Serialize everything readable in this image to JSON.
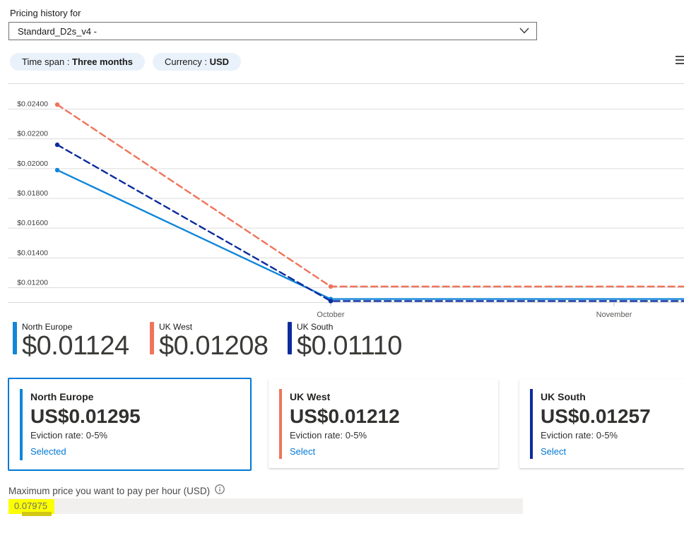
{
  "header": {
    "label": "Pricing history for",
    "dropdown_value": "Standard_D2s_v4 -",
    "filters": [
      {
        "label": "Time span : ",
        "value": "Three months"
      },
      {
        "label": "Currency : ",
        "value": "USD"
      }
    ],
    "menu_icon": "chart-context-menu-icon"
  },
  "chart_data": {
    "type": "line",
    "title": "Pricing history",
    "x_unit": "months relative to October tick",
    "x_ticks": [
      "October",
      "November"
    ],
    "y_ticks": [
      {
        "label": "$0.02400",
        "value": 0.024
      },
      {
        "label": "$0.02200",
        "value": 0.022
      },
      {
        "label": "$0.02000",
        "value": 0.02
      },
      {
        "label": "$0.01800",
        "value": 0.018
      },
      {
        "label": "$0.01600",
        "value": 0.016
      },
      {
        "label": "$0.01400",
        "value": 0.014
      },
      {
        "label": "$0.01200",
        "value": 0.012
      }
    ],
    "ylim": [
      0.011,
      0.0257
    ],
    "grid": true,
    "legend_position": "bottom",
    "series": [
      {
        "name": "North Europe",
        "color": "#1086d9",
        "style": "solid",
        "points": [
          {
            "t": -0.965,
            "price": 0.0199
          },
          {
            "t": 0,
            "price": 0.01124
          },
          {
            "t": 1.247,
            "price": 0.01124
          }
        ]
      },
      {
        "name": "UK West",
        "color": "#f0735a",
        "style": "dashed",
        "points": [
          {
            "t": -0.965,
            "price": 0.0243
          },
          {
            "t": 0,
            "price": 0.01208
          },
          {
            "t": 1.247,
            "price": 0.01208
          }
        ]
      },
      {
        "name": "UK South",
        "color": "#0b2c9d",
        "style": "dashed",
        "points": [
          {
            "t": -0.965,
            "price": 0.0216
          },
          {
            "t": 0,
            "price": 0.0111
          },
          {
            "t": 1.247,
            "price": 0.0111
          }
        ]
      }
    ]
  },
  "legend": [
    {
      "name": "North Europe",
      "price": "$0.01124",
      "color": "#1086d9"
    },
    {
      "name": "UK West",
      "price": "$0.01208",
      "color": "#f0735a"
    },
    {
      "name": "UK South",
      "price": "$0.01110",
      "color": "#0b2c9d"
    }
  ],
  "cards": [
    {
      "region": "North Europe",
      "price": "US$0.01295",
      "eviction": "Eviction rate: 0-5%",
      "action": "Selected",
      "accent": "#1086d9",
      "selected": true
    },
    {
      "region": "UK West",
      "price": "US$0.01212",
      "eviction": "Eviction rate: 0-5%",
      "action": "Select",
      "accent": "#f0735a",
      "selected": false
    },
    {
      "region": "UK South",
      "price": "US$0.01257",
      "eviction": "Eviction rate: 0-5%",
      "action": "Select",
      "accent": "#0b2c9d",
      "selected": false
    }
  ],
  "max_price": {
    "label": "Maximum price you want to pay per hour (USD)",
    "value": "0.07975",
    "highlight_color": "#fbff00"
  },
  "colors": {
    "accent_blue": "#0078d4",
    "chip_background": "#e9f1fa",
    "gridline": "#dcdcdc",
    "input_background": "#f1f0ee"
  }
}
